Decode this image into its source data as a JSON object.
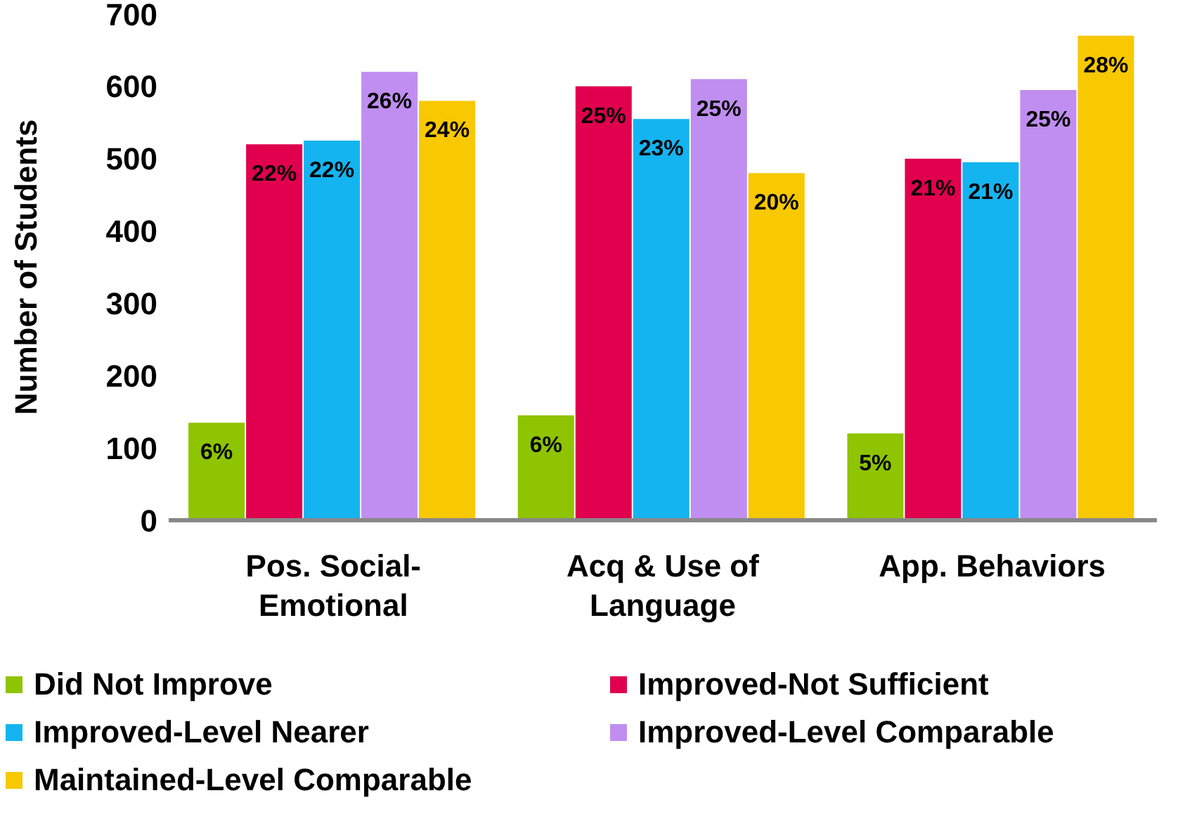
{
  "chart_data": {
    "type": "bar",
    "ylabel": "Number of Students",
    "categories": [
      "Pos. Social-Emotional",
      "Acq & Use of Language",
      "App. Behaviors"
    ],
    "series": [
      {
        "name": "Did Not Improve",
        "color": "#8fc400",
        "values": [
          135,
          145,
          120
        ]
      },
      {
        "name": "Improved-Not Sufficient",
        "color": "#e0004e",
        "values": [
          520,
          600,
          500
        ]
      },
      {
        "name": "Improved-Level Nearer",
        "color": "#14b4f0",
        "values": [
          525,
          555,
          495
        ]
      },
      {
        "name": "Improved-Level Comparable",
        "color": "#c08ef0",
        "values": [
          620,
          610,
          595
        ]
      },
      {
        "name": "Maintained-Level Comparable",
        "color": "#f8c800",
        "values": [
          580,
          480,
          670
        ]
      }
    ],
    "annotations": [
      "6%",
      "6%",
      "5%",
      "22%",
      "25%",
      "21%",
      "22%",
      "23%",
      "21%",
      "26%",
      "25%",
      "25%",
      "24%",
      "20%",
      "28%"
    ],
    "ylim": [
      0,
      700
    ],
    "yticks": [
      0,
      100,
      200,
      300,
      400,
      500,
      600,
      700
    ],
    "grid": false,
    "legend": "bottom"
  }
}
